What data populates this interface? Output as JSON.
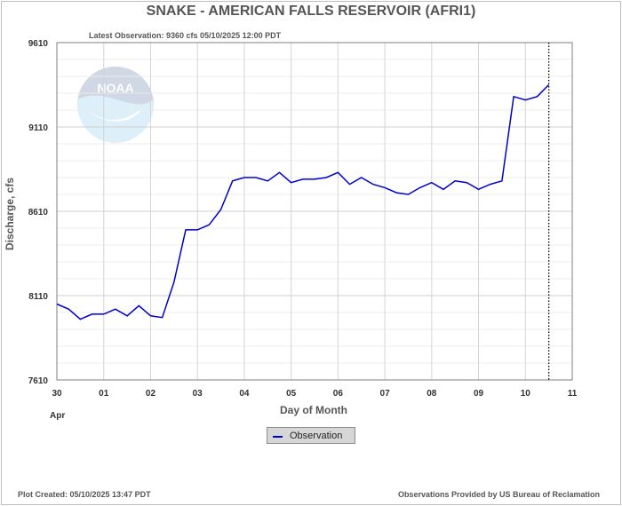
{
  "header": {
    "title": "SNAKE - AMERICAN FALLS RESERVOIR  (AFRI1)",
    "latest_observation": "Latest Observation: 9360 cfs 05/10/2025 12:00 PDT"
  },
  "logo": {
    "text": "NOAA"
  },
  "legend": {
    "label": "Observation"
  },
  "footer": {
    "created": "Plot Created: 05/10/2025 13:47 PDT",
    "source": "Observations Provided by US Bureau of Reclamation"
  },
  "colors": {
    "series": "#0000cc",
    "grid": "#d4d4d4",
    "text": "#555555",
    "marker_line": "#000000"
  },
  "chart_data": {
    "type": "line",
    "title": "SNAKE - AMERICAN FALLS RESERVOIR  (AFRI1)",
    "xlabel": "Day of Month",
    "ylabel": "Discharge, cfs",
    "xlim": [
      0,
      11
    ],
    "ylim": [
      7610,
      9610
    ],
    "yticks": [
      7610,
      8110,
      8610,
      9110,
      9610
    ],
    "xticks": [
      0,
      1,
      2,
      3,
      4,
      5,
      6,
      7,
      8,
      9,
      10,
      11
    ],
    "xtick_labels": [
      "30",
      "01",
      "02",
      "03",
      "04",
      "05",
      "06",
      "07",
      "08",
      "09",
      "10",
      "11"
    ],
    "xtick_sublabel": "Apr",
    "grid": true,
    "legend_position": "bottom-center",
    "current_time_x": 10.5,
    "series": [
      {
        "name": "Observation",
        "x": [
          0,
          0.25,
          0.5,
          0.75,
          1.0,
          1.25,
          1.5,
          1.75,
          2.0,
          2.25,
          2.5,
          2.75,
          3.0,
          3.25,
          3.5,
          3.75,
          4.0,
          4.25,
          4.5,
          4.75,
          5.0,
          5.25,
          5.5,
          5.75,
          6.0,
          6.25,
          6.5,
          6.75,
          7.0,
          7.25,
          7.5,
          7.75,
          8.0,
          8.25,
          8.5,
          8.75,
          9.0,
          9.25,
          9.5,
          9.75,
          10.0,
          10.25,
          10.5
        ],
        "y": [
          8060,
          8030,
          7970,
          8000,
          8000,
          8030,
          7990,
          8050,
          7990,
          7980,
          8190,
          8500,
          8500,
          8530,
          8620,
          8790,
          8810,
          8810,
          8790,
          8840,
          8780,
          8800,
          8800,
          8810,
          8840,
          8770,
          8810,
          8770,
          8750,
          8720,
          8710,
          8750,
          8780,
          8740,
          8790,
          8780,
          8740,
          8770,
          8790,
          9290,
          9270,
          9290,
          9360
        ]
      }
    ]
  }
}
